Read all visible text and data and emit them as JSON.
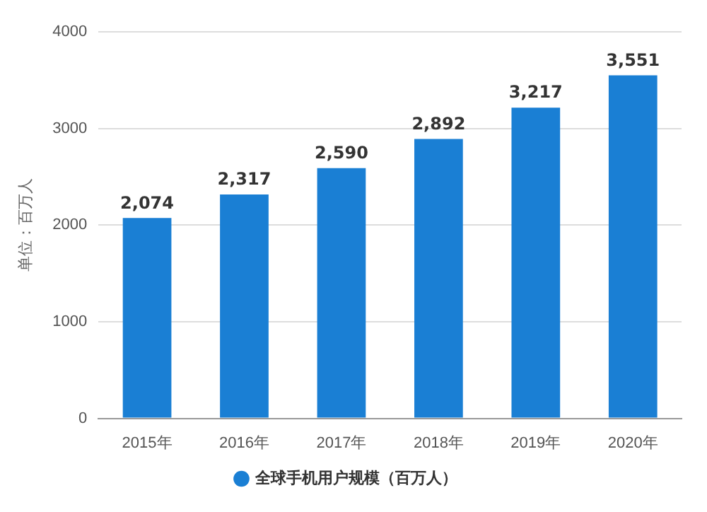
{
  "chart_data": {
    "type": "bar",
    "ylabel": "单位：百万人",
    "categories": [
      "2015年",
      "2016年",
      "2017年",
      "2018年",
      "2019年",
      "2020年"
    ],
    "series": [
      {
        "name": "全球手机用户规模（百万人）",
        "color": "#1a7fd4",
        "values": [
          2074,
          2317,
          2590,
          2892,
          3217,
          3551
        ],
        "value_labels": [
          "2,074",
          "2,317",
          "2,590",
          "2,892",
          "3,217",
          "3,551"
        ]
      }
    ],
    "ylim": [
      0,
      4000
    ],
    "yticks": [
      0,
      1000,
      2000,
      3000,
      4000
    ],
    "grid": "y",
    "legend": "bottom"
  }
}
